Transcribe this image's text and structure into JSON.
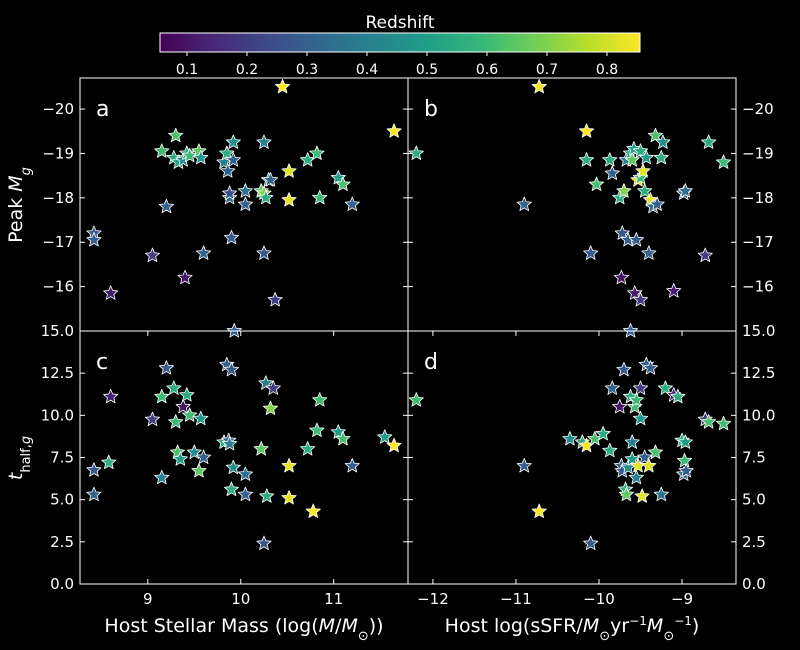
{
  "colorbar": {
    "label": "Redshift",
    "range": [
      0.055,
      0.855
    ],
    "ticks": [
      0.1,
      0.2,
      0.3,
      0.4,
      0.5,
      0.6,
      0.7,
      0.8
    ],
    "tick_labels": [
      "0.1",
      "0.2",
      "0.3",
      "0.4",
      "0.5",
      "0.6",
      "0.7",
      "0.8"
    ],
    "colormap": "viridis",
    "stops": [
      "#440154",
      "#482878",
      "#3e4989",
      "#31688e",
      "#26828e",
      "#1f9e89",
      "#35b779",
      "#6ece58",
      "#b5de2b",
      "#fde725"
    ]
  },
  "axes_style": {
    "background": "#000000",
    "spine_color": "#ffffff",
    "marker_edge": "#ffffff",
    "marker": "star"
  },
  "chart_data": [
    {
      "type": "scatter",
      "panel": "a",
      "xlabel": "",
      "ylabel": "Peak M_g",
      "xlim": [
        8.27,
        11.8
      ],
      "ylim": [
        -20.7,
        -15.0
      ],
      "y_inverted": true,
      "xticks": [],
      "xtick_labels": [],
      "yticks": [
        -20,
        -19,
        -18,
        -17,
        -16
      ],
      "ytick_labels": [
        "−20",
        "−19",
        "−18",
        "−17",
        "−16"
      ],
      "points": [
        {
          "x": 8.42,
          "y": -17.2,
          "z": 0.28
        },
        {
          "x": 8.42,
          "y": -17.05,
          "z": 0.3
        },
        {
          "x": 8.6,
          "y": -15.85,
          "z": 0.12
        },
        {
          "x": 9.05,
          "y": -16.7,
          "z": 0.2
        },
        {
          "x": 9.15,
          "y": -19.05,
          "z": 0.6
        },
        {
          "x": 9.2,
          "y": -17.8,
          "z": 0.3
        },
        {
          "x": 9.28,
          "y": -18.9,
          "z": 0.55
        },
        {
          "x": 9.3,
          "y": -19.4,
          "z": 0.62
        },
        {
          "x": 9.33,
          "y": -18.8,
          "z": 0.5
        },
        {
          "x": 9.38,
          "y": -18.85,
          "z": 0.45
        },
        {
          "x": 9.4,
          "y": -16.2,
          "z": 0.1
        },
        {
          "x": 9.42,
          "y": -19.0,
          "z": 0.55
        },
        {
          "x": 9.45,
          "y": -18.95,
          "z": 0.6
        },
        {
          "x": 9.55,
          "y": -19.05,
          "z": 0.65
        },
        {
          "x": 9.57,
          "y": -18.9,
          "z": 0.48
        },
        {
          "x": 9.6,
          "y": -16.75,
          "z": 0.3
        },
        {
          "x": 9.82,
          "y": -18.8,
          "z": 0.4
        },
        {
          "x": 9.85,
          "y": -19.0,
          "z": 0.55
        },
        {
          "x": 9.86,
          "y": -18.6,
          "z": 0.3
        },
        {
          "x": 9.88,
          "y": -18.0,
          "z": 0.35
        },
        {
          "x": 9.88,
          "y": -18.1,
          "z": 0.25
        },
        {
          "x": 9.9,
          "y": -17.1,
          "z": 0.28
        },
        {
          "x": 9.92,
          "y": -19.25,
          "z": 0.45
        },
        {
          "x": 9.92,
          "y": -18.85,
          "z": 0.3
        },
        {
          "x": 10.05,
          "y": -18.15,
          "z": 0.35
        },
        {
          "x": 10.05,
          "y": -17.85,
          "z": 0.3
        },
        {
          "x": 10.22,
          "y": -18.15,
          "z": 0.65
        },
        {
          "x": 10.25,
          "y": -18.1,
          "z": 0.7
        },
        {
          "x": 10.27,
          "y": -18.0,
          "z": 0.55
        },
        {
          "x": 10.25,
          "y": -19.25,
          "z": 0.4
        },
        {
          "x": 10.25,
          "y": -16.75,
          "z": 0.28
        },
        {
          "x": 10.3,
          "y": -18.4,
          "z": 0.45
        },
        {
          "x": 10.32,
          "y": -18.4,
          "z": 0.3
        },
        {
          "x": 10.37,
          "y": -15.7,
          "z": 0.2
        },
        {
          "x": 10.45,
          "y": -20.5,
          "z": 0.85
        },
        {
          "x": 10.52,
          "y": -18.6,
          "z": 0.82
        },
        {
          "x": 10.52,
          "y": -17.95,
          "z": 0.82
        },
        {
          "x": 10.72,
          "y": -18.85,
          "z": 0.55
        },
        {
          "x": 10.82,
          "y": -19.0,
          "z": 0.6
        },
        {
          "x": 10.85,
          "y": -18.0,
          "z": 0.6
        },
        {
          "x": 11.05,
          "y": -18.45,
          "z": 0.5
        },
        {
          "x": 11.1,
          "y": -18.3,
          "z": 0.62
        },
        {
          "x": 11.2,
          "y": -17.85,
          "z": 0.3
        },
        {
          "x": 11.65,
          "y": -19.5,
          "z": 0.85
        }
      ]
    },
    {
      "type": "scatter",
      "panel": "b",
      "xlabel": "",
      "ylabel": "",
      "xlim": [
        -12.3,
        -8.35
      ],
      "ylim": [
        -20.7,
        -15.0
      ],
      "y_inverted": true,
      "xticks": [],
      "xtick_labels": [],
      "yticks": [
        -20,
        -19,
        -18,
        -17,
        -16
      ],
      "ytick_labels": [
        "−20",
        "−19",
        "−18",
        "−17",
        "−16"
      ],
      "points": [
        {
          "x": -12.2,
          "y": -19.0,
          "z": 0.55
        },
        {
          "x": -10.9,
          "y": -17.85,
          "z": 0.3
        },
        {
          "x": -10.72,
          "y": -20.5,
          "z": 0.85
        },
        {
          "x": -10.15,
          "y": -19.5,
          "z": 0.85
        },
        {
          "x": -10.15,
          "y": -18.85,
          "z": 0.55
        },
        {
          "x": -10.1,
          "y": -16.75,
          "z": 0.28
        },
        {
          "x": -10.03,
          "y": -18.3,
          "z": 0.62
        },
        {
          "x": -9.87,
          "y": -18.85,
          "z": 0.55
        },
        {
          "x": -9.84,
          "y": -18.55,
          "z": 0.3
        },
        {
          "x": -9.75,
          "y": -18.0,
          "z": 0.55
        },
        {
          "x": -9.73,
          "y": -16.2,
          "z": 0.1
        },
        {
          "x": -9.72,
          "y": -17.2,
          "z": 0.28
        },
        {
          "x": -9.7,
          "y": -18.15,
          "z": 0.7
        },
        {
          "x": -9.67,
          "y": -18.85,
          "z": 0.4
        },
        {
          "x": -9.65,
          "y": -17.05,
          "z": 0.3
        },
        {
          "x": -9.62,
          "y": -19.0,
          "z": 0.55
        },
        {
          "x": -9.6,
          "y": -18.85,
          "z": 0.65
        },
        {
          "x": -9.58,
          "y": -19.1,
          "z": 0.5
        },
        {
          "x": -9.57,
          "y": -15.85,
          "z": 0.12
        },
        {
          "x": -9.55,
          "y": -17.05,
          "z": 0.28
        },
        {
          "x": -9.53,
          "y": -18.4,
          "z": 0.82
        },
        {
          "x": -9.5,
          "y": -18.45,
          "z": 0.6
        },
        {
          "x": -9.5,
          "y": -19.05,
          "z": 0.55
        },
        {
          "x": -9.5,
          "y": -15.7,
          "z": 0.2
        },
        {
          "x": -9.47,
          "y": -18.6,
          "z": 0.82
        },
        {
          "x": -9.45,
          "y": -18.15,
          "z": 0.55
        },
        {
          "x": -9.43,
          "y": -18.9,
          "z": 0.48
        },
        {
          "x": -9.4,
          "y": -16.75,
          "z": 0.3
        },
        {
          "x": -9.38,
          "y": -17.95,
          "z": 0.82
        },
        {
          "x": -9.35,
          "y": -17.8,
          "z": 0.35
        },
        {
          "x": -9.3,
          "y": -17.85,
          "z": 0.3
        },
        {
          "x": -9.32,
          "y": -19.4,
          "z": 0.62
        },
        {
          "x": -9.25,
          "y": -18.9,
          "z": 0.55
        },
        {
          "x": -9.23,
          "y": -19.25,
          "z": 0.45
        },
        {
          "x": -9.1,
          "y": -15.9,
          "z": 0.12
        },
        {
          "x": -8.98,
          "y": -18.1,
          "z": 0.3
        },
        {
          "x": -8.96,
          "y": -18.15,
          "z": 0.35
        },
        {
          "x": -8.72,
          "y": -16.7,
          "z": 0.2
        },
        {
          "x": -8.68,
          "y": -19.25,
          "z": 0.55
        },
        {
          "x": -8.5,
          "y": -18.8,
          "z": 0.6
        }
      ]
    },
    {
      "type": "scatter",
      "panel": "c",
      "xlabel": "Host Stellar Mass (log(M/M⊙))",
      "ylabel": "t_half,g",
      "xlim": [
        8.27,
        11.8
      ],
      "ylim": [
        0.0,
        15.0
      ],
      "y_inverted": false,
      "xticks": [
        9,
        10,
        11
      ],
      "xtick_labels": [
        "9",
        "10",
        "11"
      ],
      "yticks": [
        0,
        2.5,
        5,
        7.5,
        10,
        12.5,
        15
      ],
      "ytick_labels": [
        "0.0",
        "2.5",
        "5.0",
        "7.5",
        "10.0",
        "12.5",
        "15.0"
      ],
      "points": [
        {
          "x": 8.42,
          "y": 6.75,
          "z": 0.28
        },
        {
          "x": 8.42,
          "y": 5.3,
          "z": 0.3
        },
        {
          "x": 8.58,
          "y": 7.2,
          "z": 0.55
        },
        {
          "x": 8.6,
          "y": 11.1,
          "z": 0.12
        },
        {
          "x": 9.05,
          "y": 9.75,
          "z": 0.2
        },
        {
          "x": 9.15,
          "y": 6.3,
          "z": 0.4
        },
        {
          "x": 9.15,
          "y": 11.1,
          "z": 0.6
        },
        {
          "x": 9.2,
          "y": 12.8,
          "z": 0.3
        },
        {
          "x": 9.28,
          "y": 11.6,
          "z": 0.55
        },
        {
          "x": 9.3,
          "y": 9.6,
          "z": 0.6
        },
        {
          "x": 9.32,
          "y": 7.8,
          "z": 0.62
        },
        {
          "x": 9.35,
          "y": 7.4,
          "z": 0.5
        },
        {
          "x": 9.38,
          "y": 10.5,
          "z": 0.1
        },
        {
          "x": 9.42,
          "y": 11.2,
          "z": 0.55
        },
        {
          "x": 9.45,
          "y": 10.0,
          "z": 0.6
        },
        {
          "x": 9.5,
          "y": 7.8,
          "z": 0.45
        },
        {
          "x": 9.55,
          "y": 6.7,
          "z": 0.65
        },
        {
          "x": 9.57,
          "y": 9.8,
          "z": 0.48
        },
        {
          "x": 9.6,
          "y": 7.5,
          "z": 0.3
        },
        {
          "x": 9.82,
          "y": 8.4,
          "z": 0.55
        },
        {
          "x": 9.85,
          "y": 13.0,
          "z": 0.3
        },
        {
          "x": 9.87,
          "y": 8.5,
          "z": 0.35
        },
        {
          "x": 9.88,
          "y": 8.3,
          "z": 0.4
        },
        {
          "x": 9.9,
          "y": 5.6,
          "z": 0.55
        },
        {
          "x": 9.9,
          "y": 12.7,
          "z": 0.28
        },
        {
          "x": 9.92,
          "y": 6.9,
          "z": 0.45
        },
        {
          "x": 9.93,
          "y": 15.0,
          "z": 0.3
        },
        {
          "x": 10.05,
          "y": 6.5,
          "z": 0.35
        },
        {
          "x": 10.05,
          "y": 5.3,
          "z": 0.3
        },
        {
          "x": 10.22,
          "y": 8.0,
          "z": 0.65
        },
        {
          "x": 10.25,
          "y": 2.4,
          "z": 0.28
        },
        {
          "x": 10.27,
          "y": 11.9,
          "z": 0.4
        },
        {
          "x": 10.28,
          "y": 5.2,
          "z": 0.55
        },
        {
          "x": 10.32,
          "y": 10.4,
          "z": 0.7
        },
        {
          "x": 10.35,
          "y": 11.6,
          "z": 0.2
        },
        {
          "x": 10.52,
          "y": 7.0,
          "z": 0.82
        },
        {
          "x": 10.52,
          "y": 5.1,
          "z": 0.82
        },
        {
          "x": 10.72,
          "y": 8.0,
          "z": 0.55
        },
        {
          "x": 10.78,
          "y": 4.3,
          "z": 0.85
        },
        {
          "x": 10.82,
          "y": 9.1,
          "z": 0.6
        },
        {
          "x": 10.85,
          "y": 10.9,
          "z": 0.6
        },
        {
          "x": 11.05,
          "y": 9.0,
          "z": 0.5
        },
        {
          "x": 11.1,
          "y": 8.6,
          "z": 0.62
        },
        {
          "x": 11.2,
          "y": 7.0,
          "z": 0.3
        },
        {
          "x": 11.55,
          "y": 8.7,
          "z": 0.5
        },
        {
          "x": 11.65,
          "y": 8.2,
          "z": 0.85
        }
      ]
    },
    {
      "type": "scatter",
      "panel": "d",
      "xlabel": "Host log(sSFR/M⊙yr⁻¹M⊙⁻¹)",
      "ylabel": "",
      "xlim": [
        -12.3,
        -8.35
      ],
      "ylim": [
        0.0,
        15.0
      ],
      "y_inverted": false,
      "xticks": [
        -12,
        -11,
        -10,
        -9
      ],
      "xtick_labels": [
        "−12",
        "−11",
        "−10",
        "−9"
      ],
      "yticks": [
        0,
        2.5,
        5,
        7.5,
        10,
        12.5,
        15
      ],
      "ytick_labels": [
        "0.0",
        "2.5",
        "5.0",
        "7.5",
        "10.0",
        "12.5",
        "15.0"
      ],
      "points": [
        {
          "x": -12.2,
          "y": 10.9,
          "z": 0.6
        },
        {
          "x": -10.9,
          "y": 7.0,
          "z": 0.3
        },
        {
          "x": -10.72,
          "y": 4.3,
          "z": 0.85
        },
        {
          "x": -10.35,
          "y": 8.6,
          "z": 0.45
        },
        {
          "x": -10.2,
          "y": 8.4,
          "z": 0.55
        },
        {
          "x": -10.15,
          "y": 8.2,
          "z": 0.85
        },
        {
          "x": -10.1,
          "y": 2.4,
          "z": 0.28
        },
        {
          "x": -10.05,
          "y": 8.6,
          "z": 0.62
        },
        {
          "x": -9.95,
          "y": 8.9,
          "z": 0.55
        },
        {
          "x": -9.87,
          "y": 7.9,
          "z": 0.55
        },
        {
          "x": -9.84,
          "y": 11.6,
          "z": 0.3
        },
        {
          "x": -9.75,
          "y": 10.5,
          "z": 0.1
        },
        {
          "x": -9.73,
          "y": 7.0,
          "z": 0.3
        },
        {
          "x": -9.72,
          "y": 6.7,
          "z": 0.28
        },
        {
          "x": -9.7,
          "y": 12.7,
          "z": 0.28
        },
        {
          "x": -9.68,
          "y": 5.6,
          "z": 0.55
        },
        {
          "x": -9.67,
          "y": 5.3,
          "z": 0.65
        },
        {
          "x": -9.65,
          "y": 6.9,
          "z": 0.45
        },
        {
          "x": -9.62,
          "y": 15.0,
          "z": 0.3
        },
        {
          "x": -9.62,
          "y": 11.1,
          "z": 0.55
        },
        {
          "x": -9.6,
          "y": 8.4,
          "z": 0.4
        },
        {
          "x": -9.6,
          "y": 7.4,
          "z": 0.5
        },
        {
          "x": -9.57,
          "y": 10.5,
          "z": 0.6
        },
        {
          "x": -9.55,
          "y": 10.9,
          "z": 0.6
        },
        {
          "x": -9.55,
          "y": 6.3,
          "z": 0.4
        },
        {
          "x": -9.53,
          "y": 7.0,
          "z": 0.82
        },
        {
          "x": -9.5,
          "y": 11.6,
          "z": 0.2
        },
        {
          "x": -9.5,
          "y": 9.8,
          "z": 0.48
        },
        {
          "x": -9.48,
          "y": 5.2,
          "z": 0.82
        },
        {
          "x": -9.45,
          "y": 7.5,
          "z": 0.3
        },
        {
          "x": -9.43,
          "y": 13.0,
          "z": 0.3
        },
        {
          "x": -9.4,
          "y": 7.0,
          "z": 0.82
        },
        {
          "x": -9.38,
          "y": 12.8,
          "z": 0.3
        },
        {
          "x": -9.32,
          "y": 7.8,
          "z": 0.62
        },
        {
          "x": -9.25,
          "y": 5.3,
          "z": 0.35
        },
        {
          "x": -9.2,
          "y": 11.6,
          "z": 0.55
        },
        {
          "x": -9.1,
          "y": 11.2,
          "z": 0.12
        },
        {
          "x": -9.05,
          "y": 11.1,
          "z": 0.55
        },
        {
          "x": -9.0,
          "y": 8.5,
          "z": 0.55
        },
        {
          "x": -8.98,
          "y": 6.5,
          "z": 0.35
        },
        {
          "x": -8.97,
          "y": 7.3,
          "z": 0.6
        },
        {
          "x": -8.96,
          "y": 8.4,
          "z": 0.5
        },
        {
          "x": -8.95,
          "y": 6.7,
          "z": 0.28
        },
        {
          "x": -8.72,
          "y": 9.75,
          "z": 0.2
        },
        {
          "x": -8.68,
          "y": 9.6,
          "z": 0.62
        },
        {
          "x": -8.5,
          "y": 9.5,
          "z": 0.6
        }
      ]
    }
  ]
}
